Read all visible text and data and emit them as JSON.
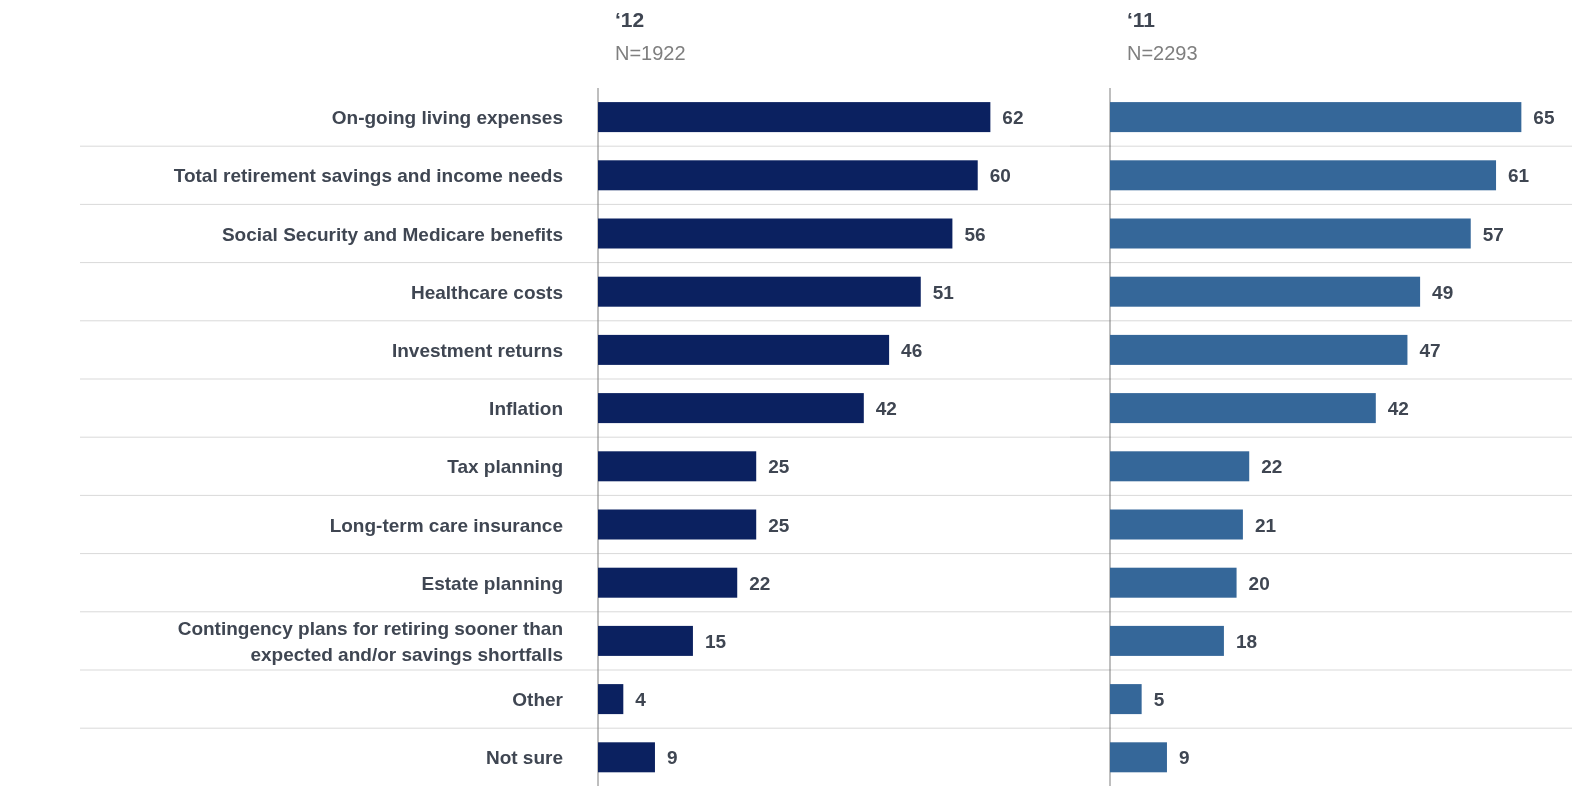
{
  "chart_data": [
    {
      "type": "bar",
      "orientation": "horizontal",
      "title": "‘12",
      "subtitle": "N=1922",
      "categories": [
        "On-going living expenses",
        "Total retirement savings and income needs",
        "Social Security and Medicare benefits",
        "Healthcare costs",
        "Investment returns",
        "Inflation",
        "Tax planning",
        "Long-term care insurance",
        "Estate planning",
        "Contingency plans for retiring sooner than expected and/or savings shortfalls",
        "Other",
        "Not sure"
      ],
      "series": [
        {
          "color": "#0b2160",
          "values": [
            62,
            60,
            56,
            51,
            46,
            42,
            25,
            25,
            22,
            15,
            4,
            9
          ]
        }
      ],
      "data_labels": true,
      "grid": "y",
      "tick_labels": "y"
    },
    {
      "type": "bar",
      "orientation": "horizontal",
      "title": "‘11",
      "subtitle": "N=2293",
      "categories": [
        null,
        null,
        null,
        null,
        null,
        null,
        null,
        null,
        null,
        null,
        null,
        null
      ],
      "series": [
        {
          "color": "#356799",
          "values": [
            65,
            61,
            57,
            49,
            47,
            42,
            22,
            21,
            20,
            18,
            5,
            9
          ]
        }
      ],
      "data_labels": true,
      "grid": "y",
      "tick_labels": false
    }
  ]
}
